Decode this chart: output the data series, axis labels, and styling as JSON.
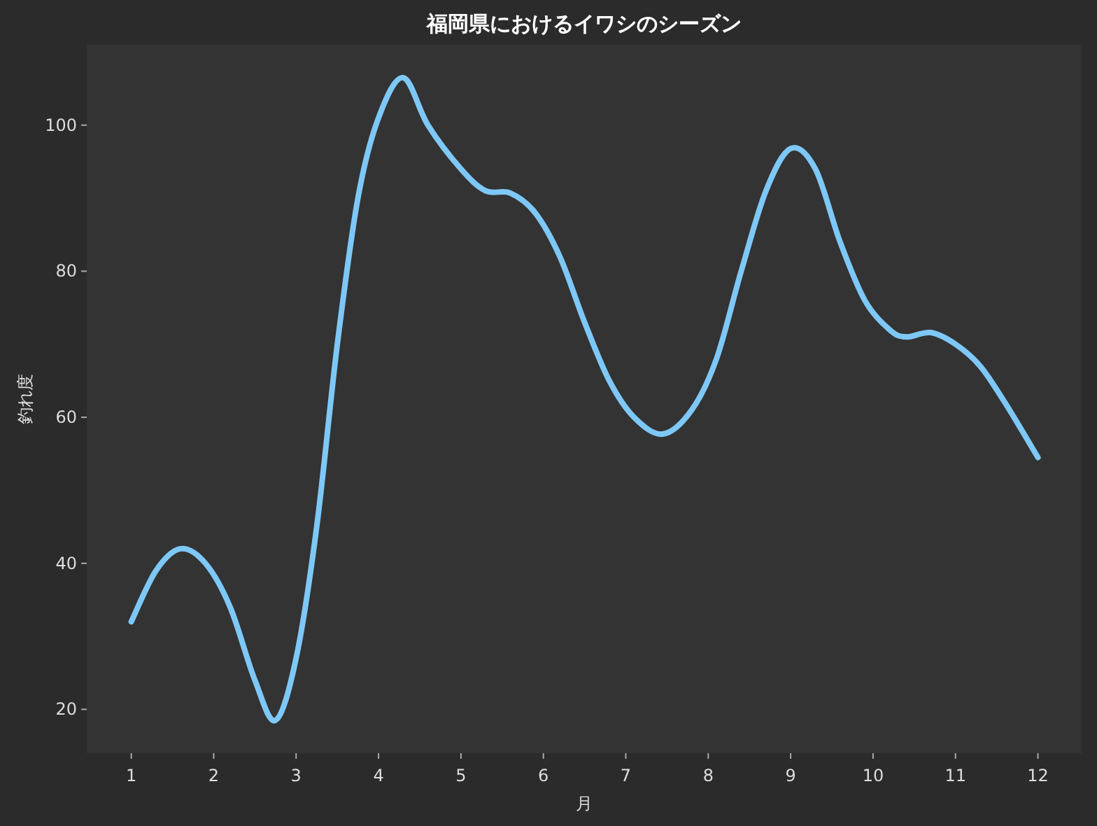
{
  "chart_data": {
    "type": "line",
    "title": "福岡県におけるイワシのシーズン",
    "xlabel": "月",
    "ylabel": "釣れ度",
    "x": [
      1.0,
      1.3,
      1.6,
      1.9,
      2.2,
      2.5,
      2.75,
      3.0,
      3.25,
      3.5,
      3.75,
      4.0,
      4.3,
      4.6,
      5.0,
      5.3,
      5.6,
      5.9,
      6.2,
      6.5,
      6.8,
      7.1,
      7.45,
      7.8,
      8.1,
      8.4,
      8.7,
      9.0,
      9.3,
      9.6,
      9.9,
      10.2,
      10.4,
      10.7,
      11.0,
      11.3,
      11.6,
      12.0
    ],
    "values": [
      32,
      39,
      42,
      40,
      34,
      24,
      18.5,
      27,
      45,
      70,
      90,
      101,
      106.5,
      100,
      94,
      91,
      90.7,
      88,
      82,
      73,
      65,
      60,
      57.7,
      61,
      68,
      80,
      91,
      96.8,
      94,
      84,
      76,
      72,
      71,
      71.6,
      70,
      67,
      62,
      54.5
    ],
    "color": "#7ec8f8",
    "xlim": [
      0.46,
      12.53
    ],
    "ylim": [
      14,
      111
    ],
    "xticks": [
      1,
      2,
      3,
      4,
      5,
      6,
      7,
      8,
      9,
      10,
      11,
      12
    ],
    "yticks": [
      20,
      40,
      60,
      80,
      100
    ]
  }
}
